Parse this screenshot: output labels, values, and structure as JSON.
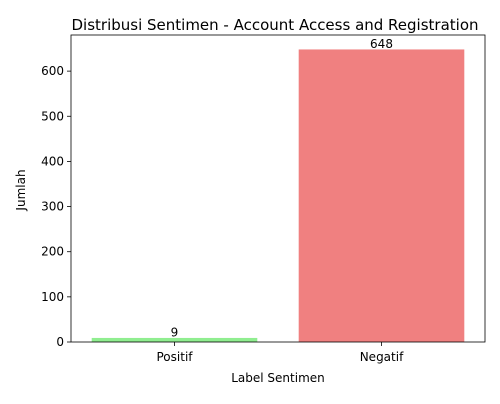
{
  "chart_data": {
    "type": "bar",
    "title": "Distribusi Sentimen - Account Access and Registration",
    "xlabel": "Label Sentimen",
    "ylabel": "Jumlah",
    "categories": [
      "Positif",
      "Negatif"
    ],
    "values": [
      9,
      648
    ],
    "colors": [
      "#90ee90",
      "#f08080"
    ],
    "data_labels": [
      "9",
      "648"
    ],
    "ylim": [
      0,
      680
    ],
    "yticks": [
      0,
      100,
      200,
      300,
      400,
      500,
      600
    ],
    "grid": false,
    "legend": "none"
  }
}
